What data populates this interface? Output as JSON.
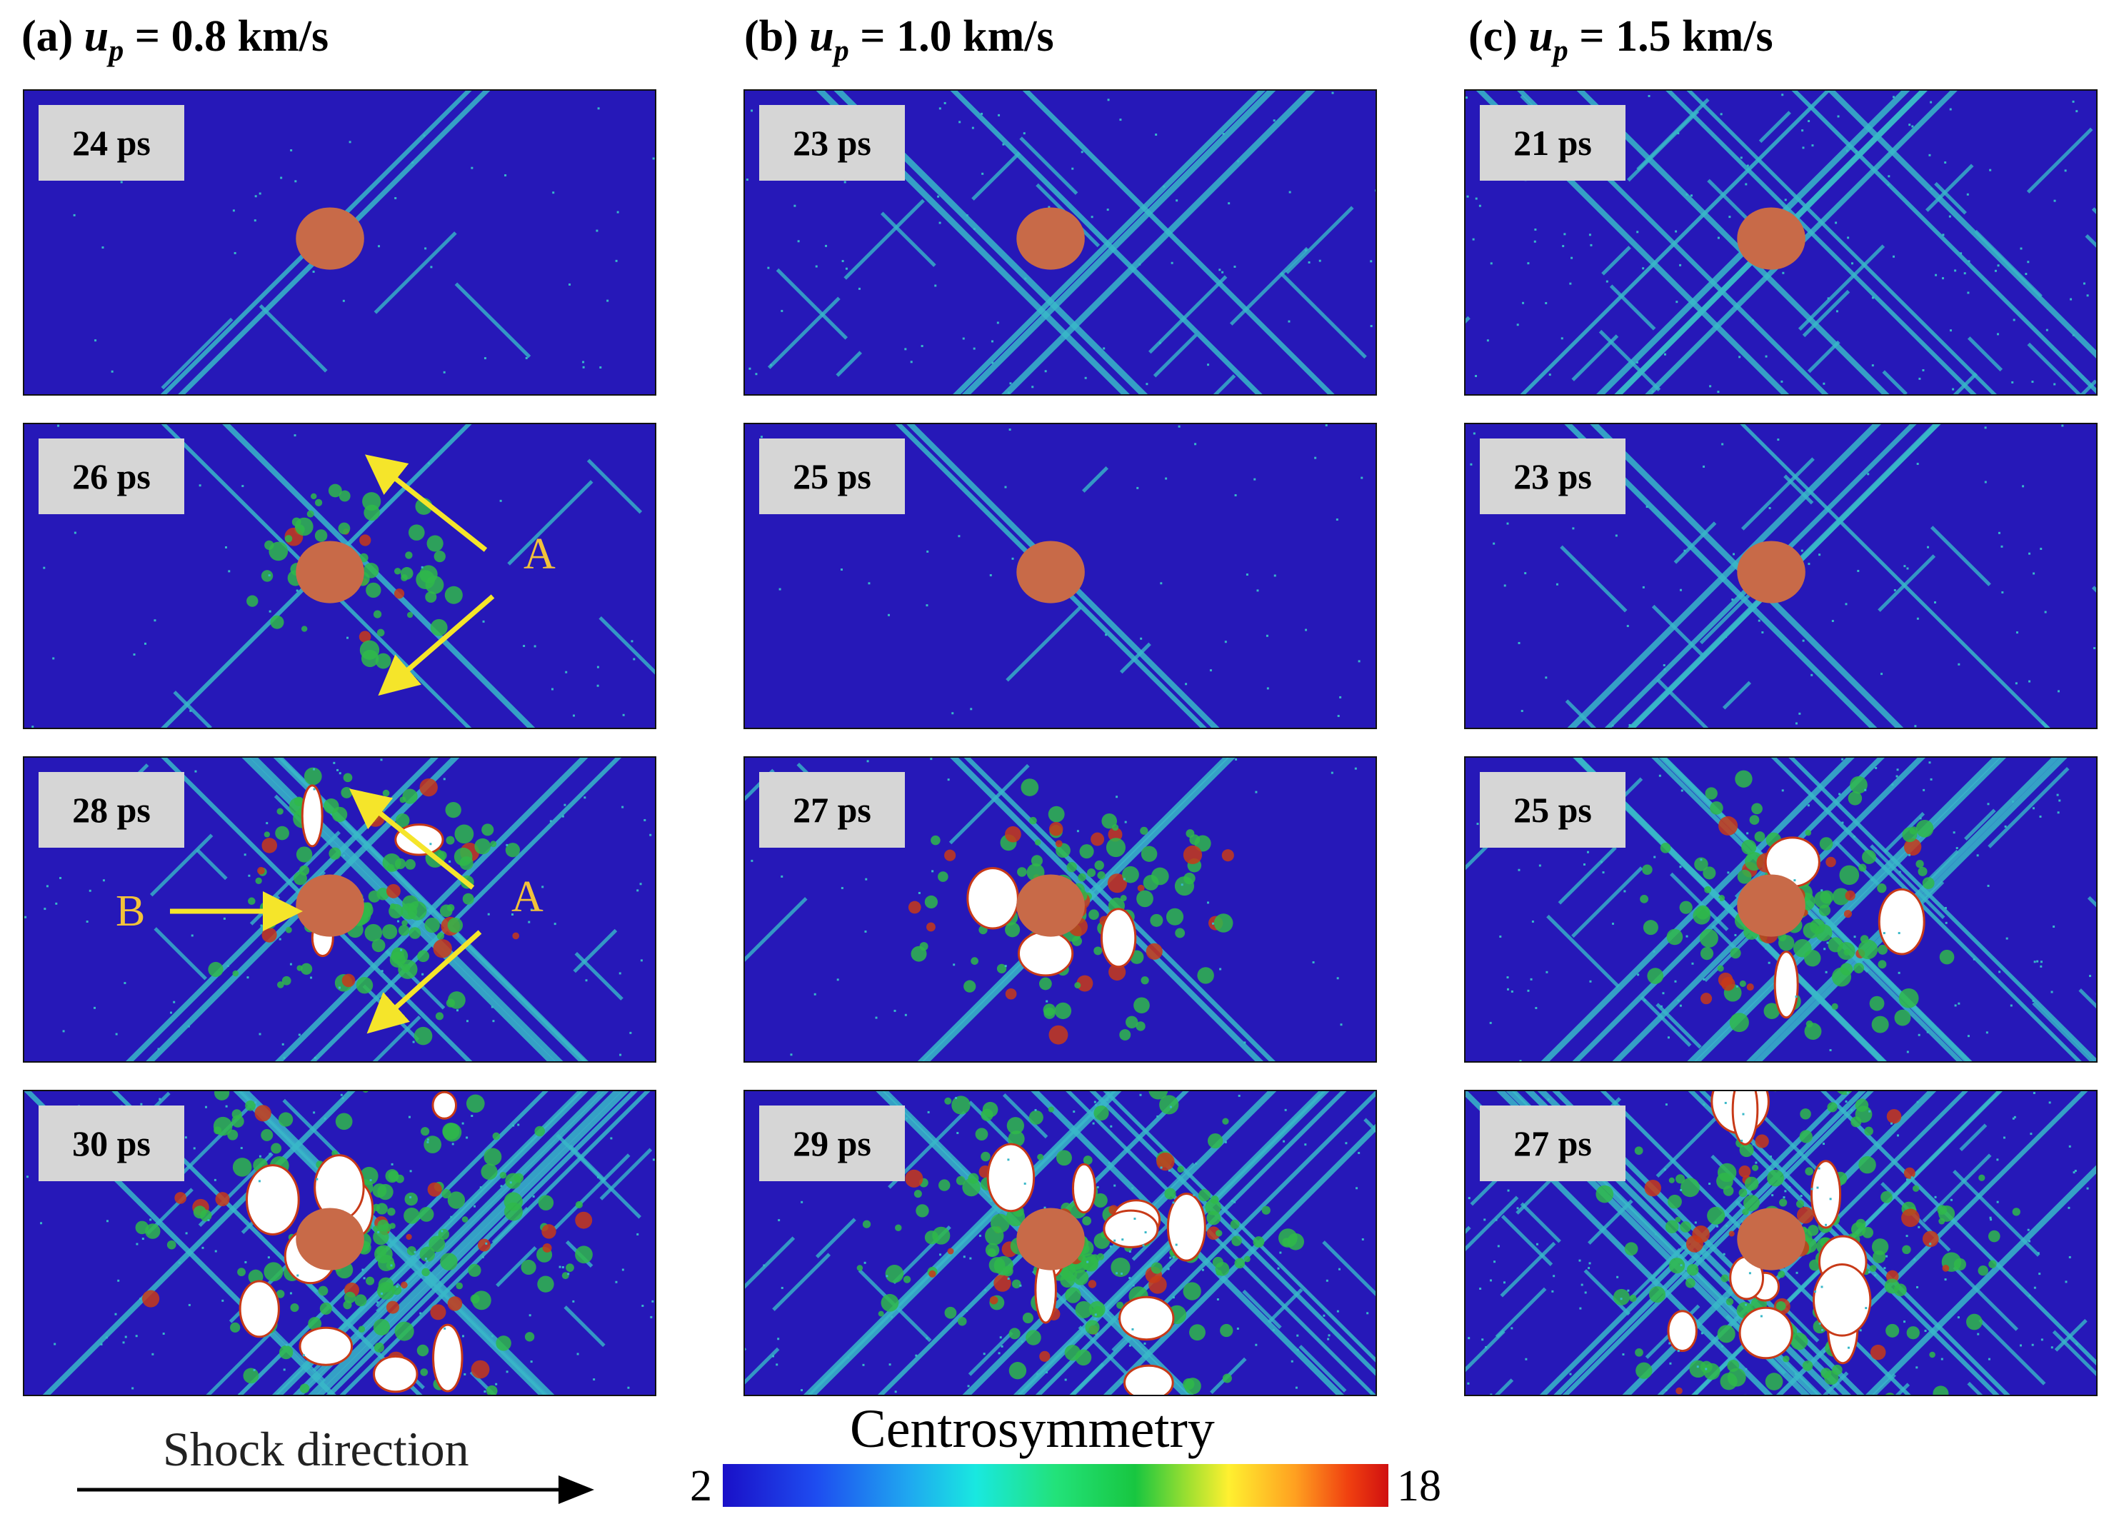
{
  "columns": [
    {
      "label": "(a)",
      "var": "u",
      "sub": "p",
      "value": "= 0.8 km/s",
      "times": [
        "24 ps",
        "26 ps",
        "28 ps",
        "30 ps"
      ]
    },
    {
      "label": "(b)",
      "var": "u",
      "sub": "p",
      "value": "= 1.0 km/s",
      "times": [
        "23 ps",
        "25 ps",
        "27 ps",
        "29 ps"
      ]
    },
    {
      "label": "(c)",
      "var": "u",
      "sub": "p",
      "value": "= 1.5 km/s",
      "times": [
        "21 ps",
        "23 ps",
        "25 ps",
        "27 ps"
      ]
    }
  ],
  "annotations": {
    "a_label": "A",
    "b_label": "B"
  },
  "shock_label": "Shock direction",
  "colorbar": {
    "title": "Centrosymmetry",
    "min": "2",
    "max": "18"
  },
  "colors": {
    "background": "#2618b8",
    "defect": "#38b8c8",
    "void": "#ffffff",
    "particle": "#c86a48",
    "arrow": "#f5e52a"
  }
}
